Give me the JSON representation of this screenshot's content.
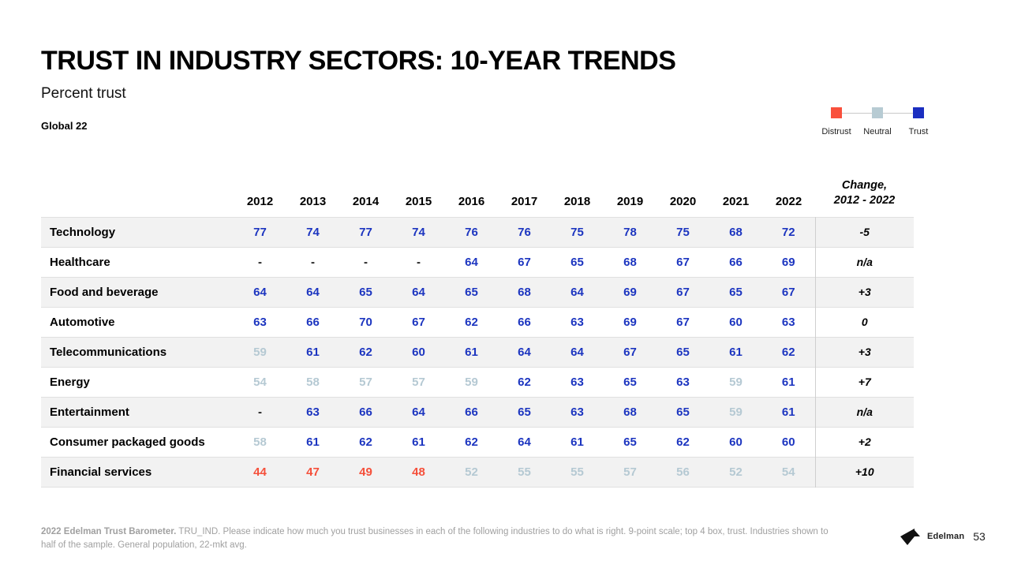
{
  "header": {
    "title": "TRUST IN INDUSTRY SECTORS: 10-YEAR TRENDS",
    "subtitle": "Percent trust",
    "scope": "Global 22"
  },
  "legend": {
    "items": [
      {
        "label": "Distrust",
        "color": "#f9503c"
      },
      {
        "label": "Neutral",
        "color": "#b7cbd3"
      },
      {
        "label": "Trust",
        "color": "#1b2ec0"
      }
    ]
  },
  "table": {
    "years": [
      "2012",
      "2013",
      "2014",
      "2015",
      "2016",
      "2017",
      "2018",
      "2019",
      "2020",
      "2021",
      "2022"
    ],
    "change_header_line1": "Change,",
    "change_header_line2": "2012 - 2022",
    "rows": [
      {
        "label": "Technology",
        "cells": [
          [
            "77",
            "trust"
          ],
          [
            "74",
            "trust"
          ],
          [
            "77",
            "trust"
          ],
          [
            "74",
            "trust"
          ],
          [
            "76",
            "trust"
          ],
          [
            "76",
            "trust"
          ],
          [
            "75",
            "trust"
          ],
          [
            "78",
            "trust"
          ],
          [
            "75",
            "trust"
          ],
          [
            "68",
            "trust"
          ],
          [
            "72",
            "trust"
          ]
        ],
        "change": "-5"
      },
      {
        "label": "Healthcare",
        "cells": [
          [
            "-",
            "na"
          ],
          [
            "-",
            "na"
          ],
          [
            "-",
            "na"
          ],
          [
            "-",
            "na"
          ],
          [
            "64",
            "trust"
          ],
          [
            "67",
            "trust"
          ],
          [
            "65",
            "trust"
          ],
          [
            "68",
            "trust"
          ],
          [
            "67",
            "trust"
          ],
          [
            "66",
            "trust"
          ],
          [
            "69",
            "trust"
          ]
        ],
        "change": "n/a"
      },
      {
        "label": "Food and beverage",
        "cells": [
          [
            "64",
            "trust"
          ],
          [
            "64",
            "trust"
          ],
          [
            "65",
            "trust"
          ],
          [
            "64",
            "trust"
          ],
          [
            "65",
            "trust"
          ],
          [
            "68",
            "trust"
          ],
          [
            "64",
            "trust"
          ],
          [
            "69",
            "trust"
          ],
          [
            "67",
            "trust"
          ],
          [
            "65",
            "trust"
          ],
          [
            "67",
            "trust"
          ]
        ],
        "change": "+3"
      },
      {
        "label": "Automotive",
        "cells": [
          [
            "63",
            "trust"
          ],
          [
            "66",
            "trust"
          ],
          [
            "70",
            "trust"
          ],
          [
            "67",
            "trust"
          ],
          [
            "62",
            "trust"
          ],
          [
            "66",
            "trust"
          ],
          [
            "63",
            "trust"
          ],
          [
            "69",
            "trust"
          ],
          [
            "67",
            "trust"
          ],
          [
            "60",
            "trust"
          ],
          [
            "63",
            "trust"
          ]
        ],
        "change": "0"
      },
      {
        "label": "Telecommunications",
        "cells": [
          [
            "59",
            "neutral"
          ],
          [
            "61",
            "trust"
          ],
          [
            "62",
            "trust"
          ],
          [
            "60",
            "trust"
          ],
          [
            "61",
            "trust"
          ],
          [
            "64",
            "trust"
          ],
          [
            "64",
            "trust"
          ],
          [
            "67",
            "trust"
          ],
          [
            "65",
            "trust"
          ],
          [
            "61",
            "trust"
          ],
          [
            "62",
            "trust"
          ]
        ],
        "change": "+3"
      },
      {
        "label": "Energy",
        "cells": [
          [
            "54",
            "neutral"
          ],
          [
            "58",
            "neutral"
          ],
          [
            "57",
            "neutral"
          ],
          [
            "57",
            "neutral"
          ],
          [
            "59",
            "neutral"
          ],
          [
            "62",
            "trust"
          ],
          [
            "63",
            "trust"
          ],
          [
            "65",
            "trust"
          ],
          [
            "63",
            "trust"
          ],
          [
            "59",
            "neutral"
          ],
          [
            "61",
            "trust"
          ]
        ],
        "change": "+7"
      },
      {
        "label": "Entertainment",
        "cells": [
          [
            "-",
            "na"
          ],
          [
            "63",
            "trust"
          ],
          [
            "66",
            "trust"
          ],
          [
            "64",
            "trust"
          ],
          [
            "66",
            "trust"
          ],
          [
            "65",
            "trust"
          ],
          [
            "63",
            "trust"
          ],
          [
            "68",
            "trust"
          ],
          [
            "65",
            "trust"
          ],
          [
            "59",
            "neutral"
          ],
          [
            "61",
            "trust"
          ]
        ],
        "change": "n/a"
      },
      {
        "label": "Consumer packaged goods",
        "cells": [
          [
            "58",
            "neutral"
          ],
          [
            "61",
            "trust"
          ],
          [
            "62",
            "trust"
          ],
          [
            "61",
            "trust"
          ],
          [
            "62",
            "trust"
          ],
          [
            "64",
            "trust"
          ],
          [
            "61",
            "trust"
          ],
          [
            "65",
            "trust"
          ],
          [
            "62",
            "trust"
          ],
          [
            "60",
            "trust"
          ],
          [
            "60",
            "trust"
          ]
        ],
        "change": "+2"
      },
      {
        "label": "Financial services",
        "cells": [
          [
            "44",
            "distrust"
          ],
          [
            "47",
            "distrust"
          ],
          [
            "49",
            "distrust"
          ],
          [
            "48",
            "distrust"
          ],
          [
            "52",
            "neutral"
          ],
          [
            "55",
            "neutral"
          ],
          [
            "55",
            "neutral"
          ],
          [
            "57",
            "neutral"
          ],
          [
            "56",
            "neutral"
          ],
          [
            "52",
            "neutral"
          ],
          [
            "54",
            "neutral"
          ]
        ],
        "change": "+10"
      }
    ]
  },
  "footer": {
    "lead": "2022 Edelman Trust Barometer.",
    "text": " TRU_IND. Please indicate how much you trust businesses in each of the following industries to do what is right. 9-point scale; top 4 box, trust. Industries shown to half of the sample. General population, 22-mkt avg."
  },
  "page": {
    "logo_text": "Edelman",
    "number": "53"
  }
}
